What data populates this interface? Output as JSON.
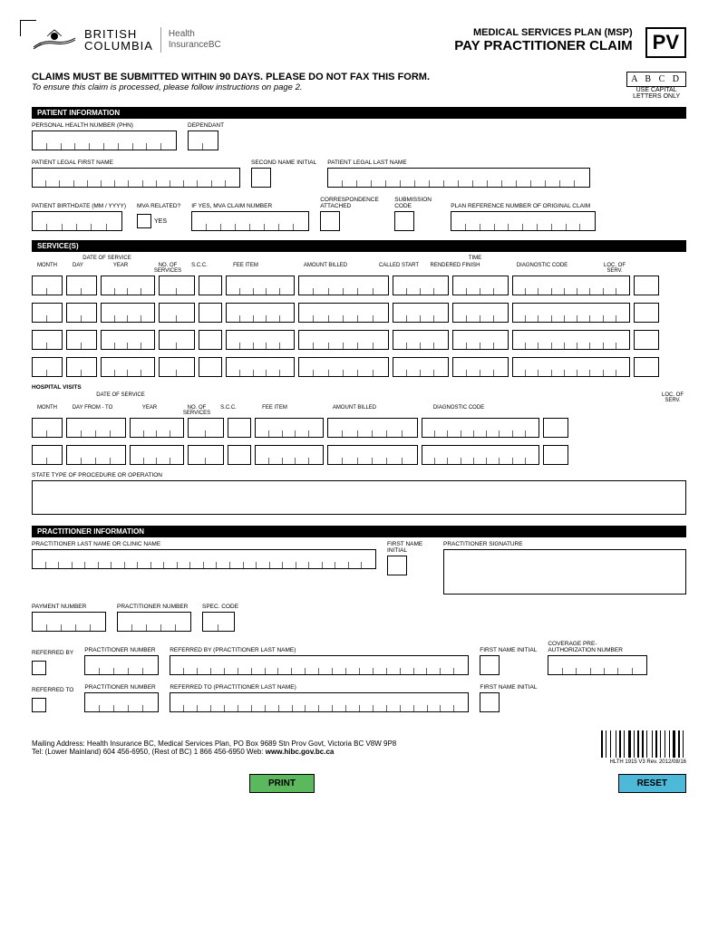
{
  "header": {
    "province_top": "BRITISH",
    "province_bottom": "COLUMBIA",
    "health": "Health",
    "insurance": "InsuranceBC",
    "msp": "MEDICAL SERVICES PLAN (MSP)",
    "title": "PAY PRACTITIONER CLAIM",
    "pv": "PV"
  },
  "notice": {
    "line1": "CLAIMS MUST BE SUBMITTED WITHIN 90 DAYS. PLEASE DO NOT FAX THIS FORM.",
    "line2": "To ensure this claim is processed, please follow instructions on page 2.",
    "abcd": "A B C D",
    "abcd_sub1": "USE CAPITAL",
    "abcd_sub2": "LETTERS ONLY"
  },
  "sections": {
    "patient": "PATIENT INFORMATION",
    "services": "SERVICE(S)",
    "practitioner": "PRACTITIONER INFORMATION"
  },
  "labels": {
    "phn": "PERSONAL HEALTH NUMBER (PHN)",
    "dependant": "DEPENDANT",
    "first_name": "PATIENT LEGAL FIRST NAME",
    "second_initial": "SECOND NAME INITIAL",
    "last_name": "PATIENT LEGAL LAST NAME",
    "birthdate": "PATIENT BIRTHDATE (MM / YYYY)",
    "mva": "MVA RELATED?",
    "mva_claim": "IF YES, MVA CLAIM NUMBER",
    "corr": "CORRESPONDENCE ATTACHED",
    "sub_code": "SUBMISSION CODE",
    "plan_ref": "PLAN REFERENCE NUMBER OF ORIGINAL CLAIM",
    "yes": "YES",
    "dos": "DATE OF SERVICE",
    "month": "MONTH",
    "day": "DAY",
    "year": "YEAR",
    "no_services": "NO. OF SERVICES",
    "scc": "S.C.C.",
    "fee_item": "FEE ITEM",
    "amount_billed": "AMOUNT BILLED",
    "called": "CALLED START",
    "time": "TIME",
    "rendered": "RENDERED FINISH",
    "diag": "DIAGNOSTIC CODE",
    "loc": "LOC. OF SERV.",
    "hospital": "HOSPITAL VISITS",
    "day_from_to": "DAY FROM - TO",
    "procedure": "STATE TYPE OF PROCEDURE OR OPERATION",
    "prac_last": "PRACTITIONER LAST NAME OR CLINIC NAME",
    "first_initial": "FIRST NAME INITIAL",
    "signature": "PRACTITIONER SIGNATURE",
    "payment_no": "PAYMENT NUMBER",
    "prac_no": "PRACTITIONER NUMBER",
    "spec_code": "SPEC. CODE",
    "ref_by": "REFERRED BY",
    "ref_by_name": "REFERRED BY (PRACTITIONER LAST NAME)",
    "ref_to": "REFERRED TO",
    "ref_to_name": "REFERRED TO (PRACTITIONER LAST NAME)",
    "coverage": "COVERAGE PRE-AUTHORIZATION NUMBER"
  },
  "footer": {
    "addr": "Mailing Address: Health Insurance BC, Medical Services Plan, PO Box 9689 Stn Prov Govt, Victoria BC  V8W 9P8",
    "tel": "Tel: (Lower Mainland) 604 456-6950, (Rest of BC) 1 866 456-6950    Web: ",
    "web": "www.hibc.gov.bc.ca",
    "form_id": "HLTH 1915   V3   Rev. 2012/08/16"
  },
  "buttons": {
    "print": "PRINT",
    "reset": "RESET"
  },
  "field_widths": {
    "phn": 10,
    "dependant": 2,
    "first_name": 15,
    "last_name": 18,
    "birthdate": 6,
    "mva_claim": 8,
    "plan_ref": 10,
    "prac_last": 28,
    "payment": 5,
    "prac_no": 5,
    "spec": 2,
    "ref_no": 5,
    "ref_name": 22,
    "coverage": 7
  },
  "colors": {
    "print_btn": "#5cb85c",
    "reset_btn": "#4db8d8"
  }
}
